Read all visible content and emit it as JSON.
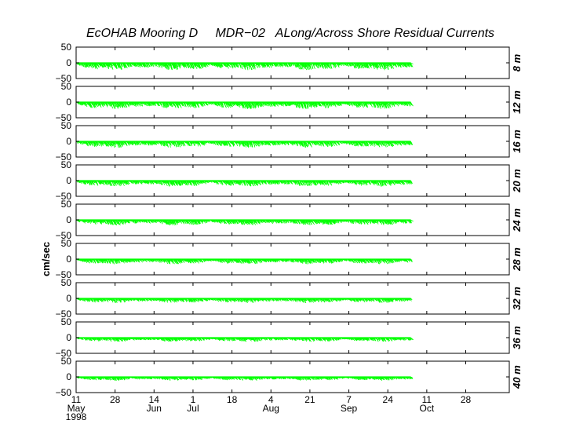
{
  "chart_data": {
    "type": "line",
    "title": "EcOHAB Mooring D     MDR−02   ALong/Across Shore Residual Currents",
    "ylabel": "cm/sec",
    "xlabel": "",
    "ylim": [
      -50,
      50
    ],
    "yticks": [
      "50",
      "0",
      "−50"
    ],
    "year_label": "1998",
    "x_day_range": [
      0,
      146
    ],
    "x_ticks": [
      {
        "day": 0,
        "label": "11"
      },
      {
        "day": 17,
        "label": "28"
      },
      {
        "day": 34,
        "label": "14"
      },
      {
        "day": 51,
        "label": "1"
      },
      {
        "day": 68,
        "label": "18"
      },
      {
        "day": 85,
        "label": "4"
      },
      {
        "day": 102,
        "label": "21"
      },
      {
        "day": 119,
        "label": "7"
      },
      {
        "day": 136,
        "label": "24"
      },
      {
        "day": 153,
        "label": "11"
      },
      {
        "day": 170,
        "label": "28"
      }
    ],
    "month_labels": [
      {
        "day": 0,
        "label": "May"
      },
      {
        "day": 34,
        "label": "Jun"
      },
      {
        "day": 51,
        "label": "Jul"
      },
      {
        "day": 85,
        "label": "Aug"
      },
      {
        "day": 119,
        "label": "Sep"
      },
      {
        "day": 153,
        "label": "Oct"
      }
    ],
    "x_range": [
      0,
      189
    ],
    "series_color": "#00ff00",
    "panels": [
      {
        "depth": "8 m"
      },
      {
        "depth": "12 m"
      },
      {
        "depth": "16 m"
      },
      {
        "depth": "20 m"
      },
      {
        "depth": "24 m"
      },
      {
        "depth": "28 m"
      },
      {
        "depth": "32 m"
      },
      {
        "depth": "36 m"
      },
      {
        "depth": "40 m"
      }
    ]
  }
}
